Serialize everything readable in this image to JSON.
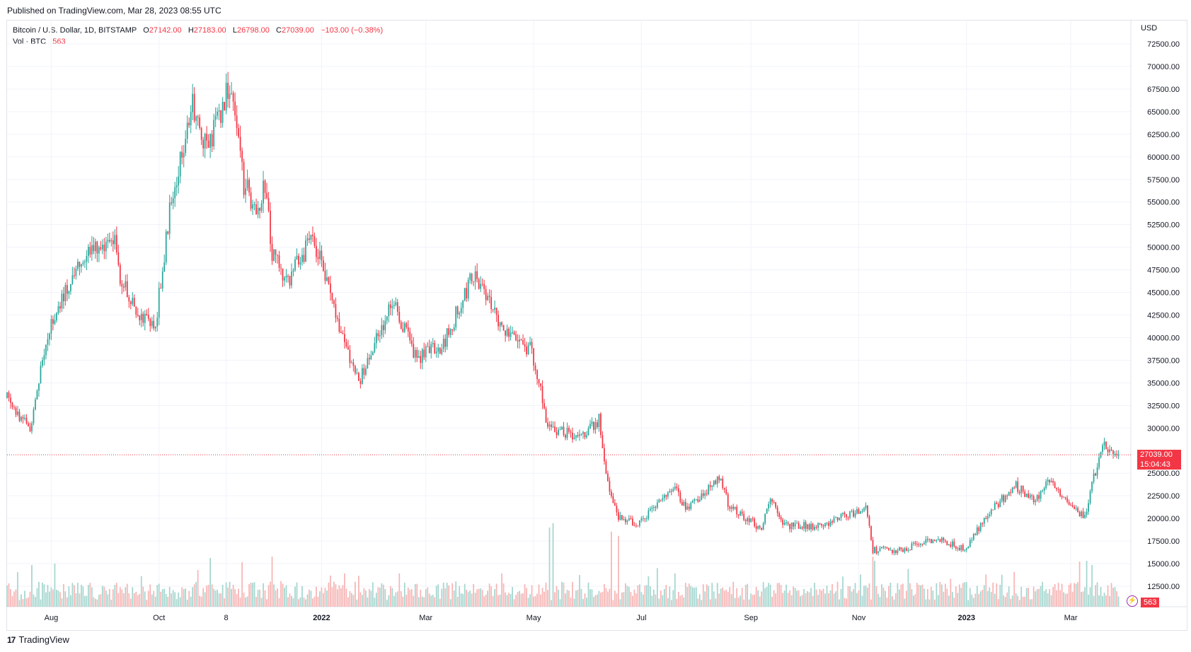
{
  "published": "Published on TradingView.com, Mar 28, 2023 08:55 UTC",
  "legend": {
    "symbol": "Bitcoin / U.S. Dollar, 1D, BITSTAMP",
    "o_label": "O",
    "o": "27142.00",
    "h_label": "H",
    "h": "27183.00",
    "l_label": "L",
    "l": "26798.00",
    "c_label": "C",
    "c": "27039.00",
    "change": "−103.00 (−0.38%)",
    "vol_label": "Vol · BTC",
    "vol": "563"
  },
  "brand": {
    "logo": "17",
    "name": "TradingView"
  },
  "price_tag": {
    "price": "27039.00",
    "countdown": "15:04:43"
  },
  "vol_tag": "563",
  "colors": {
    "up": "#26a69a",
    "down": "#f23645",
    "vol_up": "#a5d6cf",
    "vol_down": "#f7b5b5",
    "grid": "#f0f3fa",
    "axis_text": "#131722"
  },
  "chart_data": {
    "type": "candlestick",
    "currency": "USD",
    "y_ticks": [
      "72500.00",
      "70000.00",
      "67500.00",
      "65000.00",
      "62500.00",
      "60000.00",
      "57500.00",
      "55000.00",
      "52500.00",
      "50000.00",
      "47500.00",
      "45000.00",
      "42500.00",
      "40000.00",
      "37500.00",
      "35000.00",
      "32500.00",
      "30000.00",
      "25000.00",
      "22500.00",
      "20000.00",
      "17500.00",
      "15000.00",
      "12500.00"
    ],
    "ylim": [
      10000,
      74500
    ],
    "x_ticks": [
      {
        "label": "Aug",
        "date": "2021-08-01"
      },
      {
        "label": "Oct",
        "date": "2021-10-01"
      },
      {
        "label": "8",
        "date": "2021-11-08"
      },
      {
        "label": "2022",
        "date": "2022-01-01"
      },
      {
        "label": "Mar",
        "date": "2022-03-01"
      },
      {
        "label": "May",
        "date": "2022-05-01"
      },
      {
        "label": "Jul",
        "date": "2022-07-01"
      },
      {
        "label": "Sep",
        "date": "2022-09-01"
      },
      {
        "label": "Nov",
        "date": "2022-11-01"
      },
      {
        "label": "2023",
        "date": "2023-01-01"
      },
      {
        "label": "Mar",
        "date": "2023-03-01"
      }
    ],
    "last_price": 27039,
    "anchors": [
      [
        "2021-07-07",
        33300
      ],
      [
        "2021-07-20",
        29800
      ],
      [
        "2021-07-29",
        40000
      ],
      [
        "2021-08-08",
        44500
      ],
      [
        "2021-08-14",
        47500
      ],
      [
        "2021-08-23",
        49500
      ],
      [
        "2021-09-06",
        51500
      ],
      [
        "2021-09-09",
        46500
      ],
      [
        "2021-09-21",
        42500
      ],
      [
        "2021-09-29",
        41500
      ],
      [
        "2021-10-07",
        54000
      ],
      [
        "2021-10-15",
        61500
      ],
      [
        "2021-10-20",
        66000
      ],
      [
        "2021-10-28",
        60500
      ],
      [
        "2021-11-09",
        67500
      ],
      [
        "2021-11-14",
        64500
      ],
      [
        "2021-11-18",
        57000
      ],
      [
        "2021-11-26",
        54000
      ],
      [
        "2021-11-30",
        57000
      ],
      [
        "2021-12-04",
        49000
      ],
      [
        "2021-12-13",
        46500
      ],
      [
        "2021-12-27",
        51000
      ],
      [
        "2022-01-05",
        46000
      ],
      [
        "2022-01-10",
        41800
      ],
      [
        "2022-01-22",
        35000
      ],
      [
        "2022-02-10",
        44000
      ],
      [
        "2022-02-24",
        37500
      ],
      [
        "2022-03-04",
        39000
      ],
      [
        "2022-03-10",
        38800
      ],
      [
        "2022-03-28",
        47200
      ],
      [
        "2022-04-10",
        42000
      ],
      [
        "2022-04-18",
        40500
      ],
      [
        "2022-04-30",
        38500
      ],
      [
        "2022-05-09",
        30300
      ],
      [
        "2022-05-27",
        28800
      ],
      [
        "2022-06-07",
        31000
      ],
      [
        "2022-06-13",
        22500
      ],
      [
        "2022-06-18",
        20000
      ],
      [
        "2022-06-30",
        19500
      ],
      [
        "2022-07-20",
        23500
      ],
      [
        "2022-07-26",
        21000
      ],
      [
        "2022-08-14",
        24500
      ],
      [
        "2022-08-20",
        21200
      ],
      [
        "2022-09-07",
        18900
      ],
      [
        "2022-09-12",
        22400
      ],
      [
        "2022-09-19",
        19200
      ],
      [
        "2022-10-10",
        19200
      ],
      [
        "2022-11-05",
        21200
      ],
      [
        "2022-11-09",
        16500
      ],
      [
        "2022-11-25",
        16500
      ],
      [
        "2022-12-14",
        17800
      ],
      [
        "2022-12-31",
        16550
      ],
      [
        "2023-01-14",
        20800
      ],
      [
        "2023-01-29",
        23600
      ],
      [
        "2023-02-09",
        21800
      ],
      [
        "2023-02-16",
        24500
      ],
      [
        "2023-03-09",
        20000
      ],
      [
        "2023-03-14",
        24500
      ],
      [
        "2023-03-19",
        28000
      ],
      [
        "2023-03-28",
        27039
      ]
    ],
    "volume_spikes": [
      [
        "2022-05-10",
        0.95
      ],
      [
        "2022-05-12",
        1.0
      ],
      [
        "2022-06-14",
        0.9
      ],
      [
        "2022-06-18",
        0.85
      ],
      [
        "2021-12-04",
        0.6
      ],
      [
        "2022-11-09",
        0.6
      ],
      [
        "2022-11-10",
        0.55
      ],
      [
        "2023-03-10",
        0.55
      ],
      [
        "2023-03-13",
        0.5
      ],
      [
        "2021-07-21",
        0.5
      ]
    ]
  }
}
